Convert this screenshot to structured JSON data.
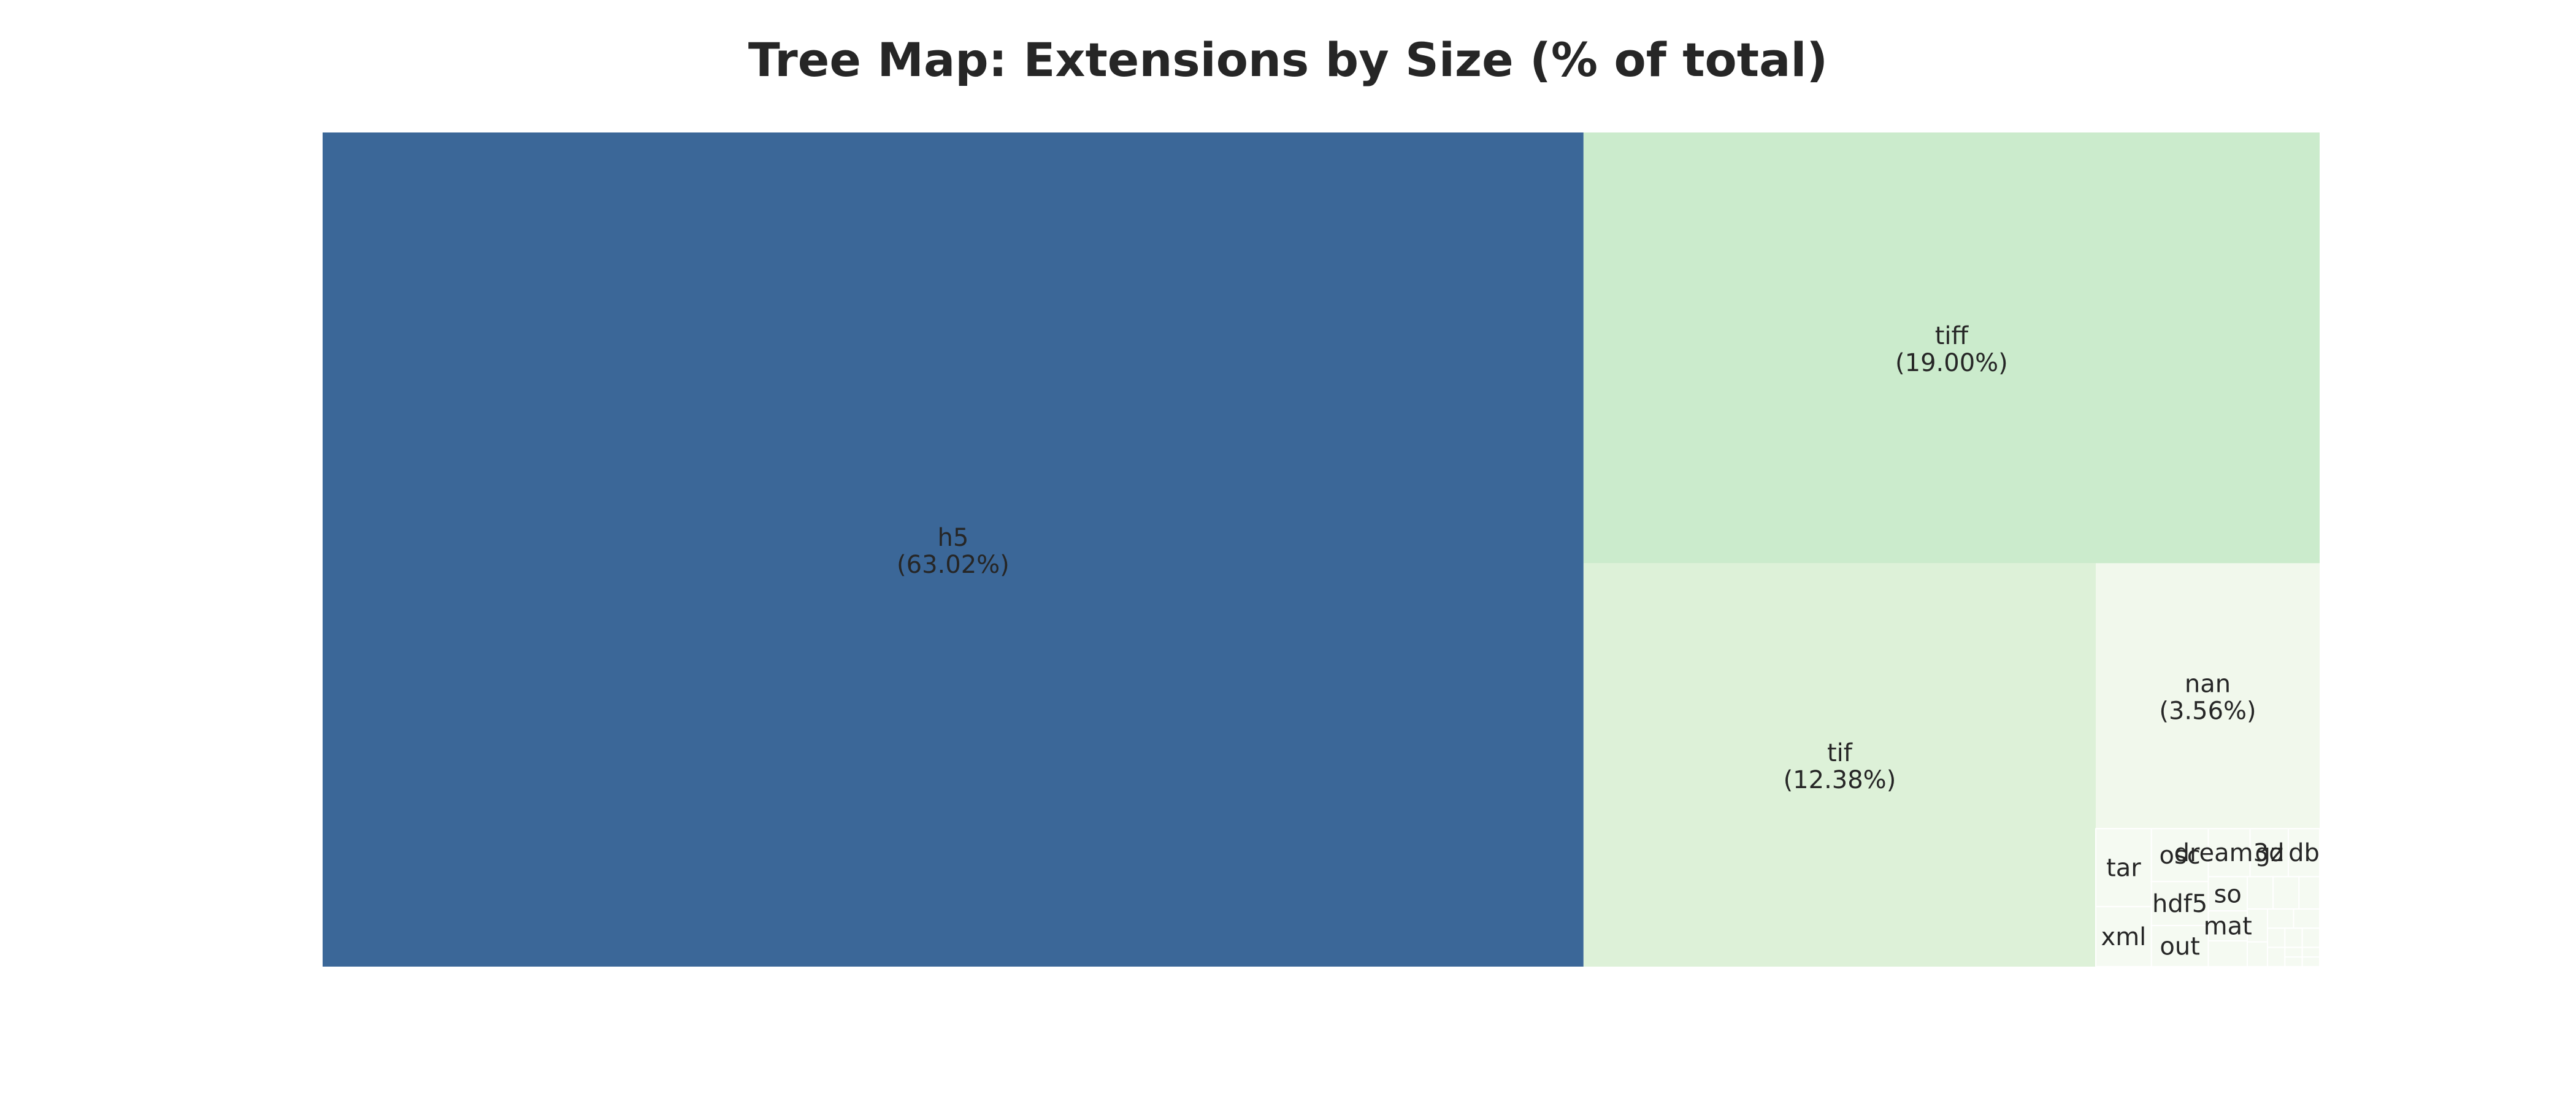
{
  "chart_data": {
    "type": "treemap",
    "title": "Tree Map: Extensions by Size (% of total)",
    "xlabel": "",
    "ylabel": "",
    "colors": {
      "h5": "#3b6798",
      "tiff": "#cbebcc",
      "tif": "#ddf1d8",
      "nan": "#f1f8ec",
      "small": "#f5faf2",
      "tile_edge": "#ffffff"
    },
    "items": [
      {
        "label": "h5",
        "percent": 63.02,
        "percent_label": "(63.02%)"
      },
      {
        "label": "tiff",
        "percent": 19.0,
        "percent_label": "(19.00%)"
      },
      {
        "label": "tif",
        "percent": 12.38,
        "percent_label": "(12.38%)"
      },
      {
        "label": "nan",
        "percent": 3.56,
        "percent_label": "(3.56%)"
      },
      {
        "label": "tar",
        "percent": 0.26
      },
      {
        "label": "xml",
        "percent": 0.2
      },
      {
        "label": "osc",
        "percent": 0.18
      },
      {
        "label": "hdf5",
        "percent": 0.15
      },
      {
        "label": "out",
        "percent": 0.14
      },
      {
        "label": "dream3d",
        "percent": 0.12
      },
      {
        "label": "gz",
        "percent": 0.11
      },
      {
        "label": "db",
        "percent": 0.09
      },
      {
        "label": "so",
        "percent": 0.08
      },
      {
        "label": "mat",
        "percent": 0.07
      },
      {
        "label": "",
        "percent": 0.06
      },
      {
        "label": "",
        "percent": 0.05
      },
      {
        "label": "",
        "percent": 0.05
      },
      {
        "label": "",
        "percent": 0.04
      },
      {
        "label": "",
        "percent": 0.04
      },
      {
        "label": "",
        "percent": 0.03
      },
      {
        "label": "",
        "percent": 0.03
      },
      {
        "label": "",
        "percent": 0.03
      },
      {
        "label": "",
        "percent": 0.02
      },
      {
        "label": "",
        "percent": 0.02
      },
      {
        "label": "",
        "percent": 0.02
      },
      {
        "label": "",
        "percent": 0.02
      },
      {
        "label": "",
        "percent": 0.01
      },
      {
        "label": "",
        "percent": 0.01
      },
      {
        "label": "",
        "percent": 0.01
      },
      {
        "label": "",
        "percent": 0.01
      }
    ]
  }
}
